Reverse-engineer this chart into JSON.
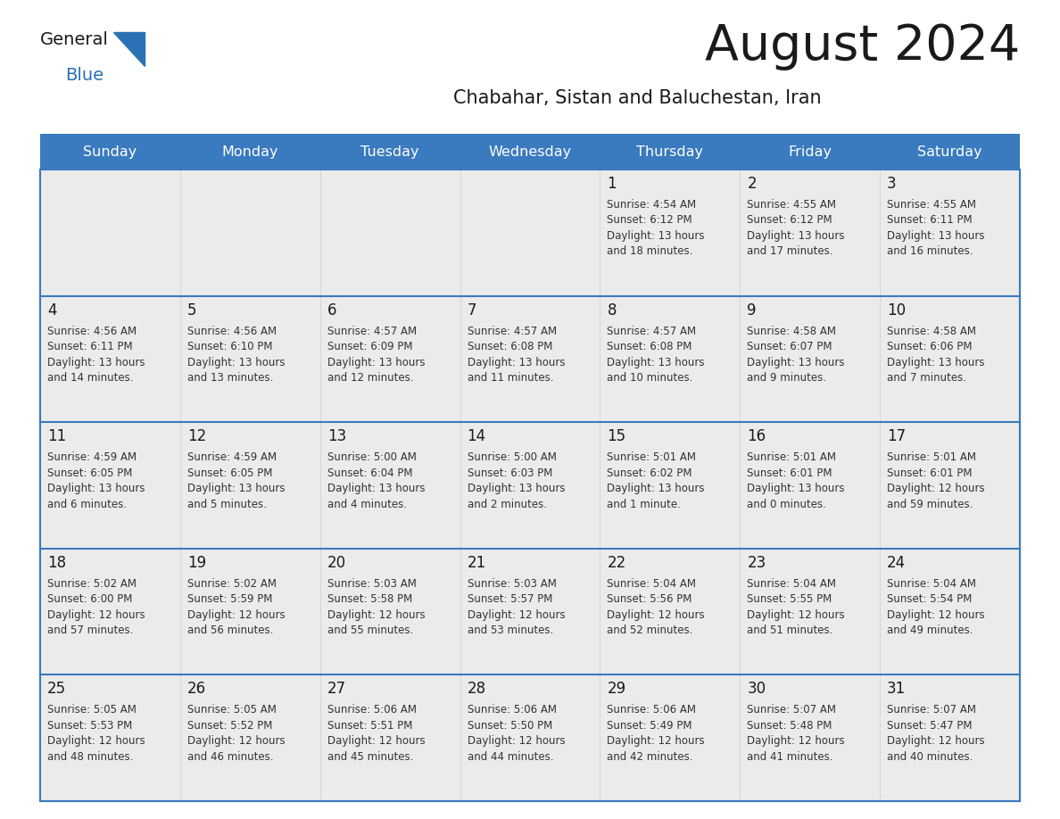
{
  "title": "August 2024",
  "subtitle": "Chabahar, Sistan and Baluchestan, Iran",
  "days_of_week": [
    "Sunday",
    "Monday",
    "Tuesday",
    "Wednesday",
    "Thursday",
    "Friday",
    "Saturday"
  ],
  "header_bg": "#3a7abf",
  "header_text": "#ffffff",
  "cell_bg": "#ebebeb",
  "cell_border": "#3a7abf",
  "title_color": "#1a1a1a",
  "subtitle_color": "#1a1a1a",
  "day_num_color": "#1a1a1a",
  "cell_text_color": "#333333",
  "logo_general_color": "#1a1a1a",
  "logo_blue_color": "#2a72b5",
  "logo_triangle_color": "#2a72b5",
  "calendar_data": [
    [
      {
        "day": "",
        "sunrise": "",
        "sunset": "",
        "daylight": ""
      },
      {
        "day": "",
        "sunrise": "",
        "sunset": "",
        "daylight": ""
      },
      {
        "day": "",
        "sunrise": "",
        "sunset": "",
        "daylight": ""
      },
      {
        "day": "",
        "sunrise": "",
        "sunset": "",
        "daylight": ""
      },
      {
        "day": "1",
        "sunrise": "4:54 AM",
        "sunset": "6:12 PM",
        "daylight": "13 hours and 18 minutes."
      },
      {
        "day": "2",
        "sunrise": "4:55 AM",
        "sunset": "6:12 PM",
        "daylight": "13 hours and 17 minutes."
      },
      {
        "day": "3",
        "sunrise": "4:55 AM",
        "sunset": "6:11 PM",
        "daylight": "13 hours and 16 minutes."
      }
    ],
    [
      {
        "day": "4",
        "sunrise": "4:56 AM",
        "sunset": "6:11 PM",
        "daylight": "13 hours and 14 minutes."
      },
      {
        "day": "5",
        "sunrise": "4:56 AM",
        "sunset": "6:10 PM",
        "daylight": "13 hours and 13 minutes."
      },
      {
        "day": "6",
        "sunrise": "4:57 AM",
        "sunset": "6:09 PM",
        "daylight": "13 hours and 12 minutes."
      },
      {
        "day": "7",
        "sunrise": "4:57 AM",
        "sunset": "6:08 PM",
        "daylight": "13 hours and 11 minutes."
      },
      {
        "day": "8",
        "sunrise": "4:57 AM",
        "sunset": "6:08 PM",
        "daylight": "13 hours and 10 minutes."
      },
      {
        "day": "9",
        "sunrise": "4:58 AM",
        "sunset": "6:07 PM",
        "daylight": "13 hours and 9 minutes."
      },
      {
        "day": "10",
        "sunrise": "4:58 AM",
        "sunset": "6:06 PM",
        "daylight": "13 hours and 7 minutes."
      }
    ],
    [
      {
        "day": "11",
        "sunrise": "4:59 AM",
        "sunset": "6:05 PM",
        "daylight": "13 hours and 6 minutes."
      },
      {
        "day": "12",
        "sunrise": "4:59 AM",
        "sunset": "6:05 PM",
        "daylight": "13 hours and 5 minutes."
      },
      {
        "day": "13",
        "sunrise": "5:00 AM",
        "sunset": "6:04 PM",
        "daylight": "13 hours and 4 minutes."
      },
      {
        "day": "14",
        "sunrise": "5:00 AM",
        "sunset": "6:03 PM",
        "daylight": "13 hours and 2 minutes."
      },
      {
        "day": "15",
        "sunrise": "5:01 AM",
        "sunset": "6:02 PM",
        "daylight": "13 hours and 1 minute."
      },
      {
        "day": "16",
        "sunrise": "5:01 AM",
        "sunset": "6:01 PM",
        "daylight": "13 hours and 0 minutes."
      },
      {
        "day": "17",
        "sunrise": "5:01 AM",
        "sunset": "6:01 PM",
        "daylight": "12 hours and 59 minutes."
      }
    ],
    [
      {
        "day": "18",
        "sunrise": "5:02 AM",
        "sunset": "6:00 PM",
        "daylight": "12 hours and 57 minutes."
      },
      {
        "day": "19",
        "sunrise": "5:02 AM",
        "sunset": "5:59 PM",
        "daylight": "12 hours and 56 minutes."
      },
      {
        "day": "20",
        "sunrise": "5:03 AM",
        "sunset": "5:58 PM",
        "daylight": "12 hours and 55 minutes."
      },
      {
        "day": "21",
        "sunrise": "5:03 AM",
        "sunset": "5:57 PM",
        "daylight": "12 hours and 53 minutes."
      },
      {
        "day": "22",
        "sunrise": "5:04 AM",
        "sunset": "5:56 PM",
        "daylight": "12 hours and 52 minutes."
      },
      {
        "day": "23",
        "sunrise": "5:04 AM",
        "sunset": "5:55 PM",
        "daylight": "12 hours and 51 minutes."
      },
      {
        "day": "24",
        "sunrise": "5:04 AM",
        "sunset": "5:54 PM",
        "daylight": "12 hours and 49 minutes."
      }
    ],
    [
      {
        "day": "25",
        "sunrise": "5:05 AM",
        "sunset": "5:53 PM",
        "daylight": "12 hours and 48 minutes."
      },
      {
        "day": "26",
        "sunrise": "5:05 AM",
        "sunset": "5:52 PM",
        "daylight": "12 hours and 46 minutes."
      },
      {
        "day": "27",
        "sunrise": "5:06 AM",
        "sunset": "5:51 PM",
        "daylight": "12 hours and 45 minutes."
      },
      {
        "day": "28",
        "sunrise": "5:06 AM",
        "sunset": "5:50 PM",
        "daylight": "12 hours and 44 minutes."
      },
      {
        "day": "29",
        "sunrise": "5:06 AM",
        "sunset": "5:49 PM",
        "daylight": "12 hours and 42 minutes."
      },
      {
        "day": "30",
        "sunrise": "5:07 AM",
        "sunset": "5:48 PM",
        "daylight": "12 hours and 41 minutes."
      },
      {
        "day": "31",
        "sunrise": "5:07 AM",
        "sunset": "5:47 PM",
        "daylight": "12 hours and 40 minutes."
      }
    ]
  ]
}
